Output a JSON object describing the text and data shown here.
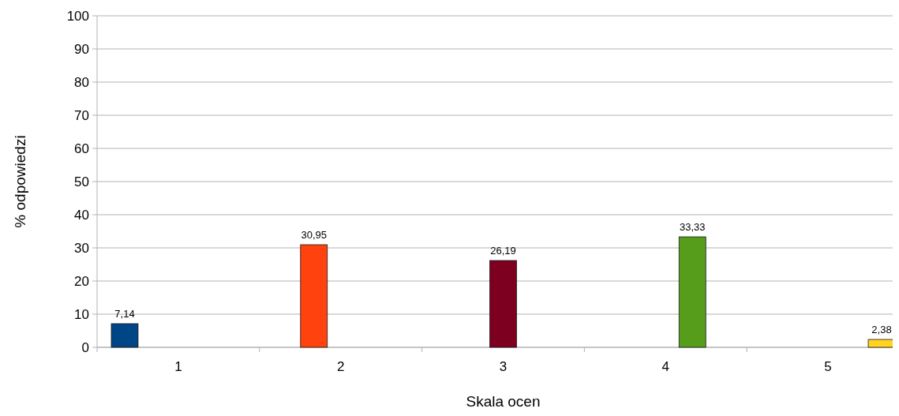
{
  "chart_data": {
    "type": "bar",
    "xlabel": "Skala ocen",
    "ylabel": "% odpowiedzi",
    "categories": [
      "1",
      "2",
      "3",
      "4",
      "5"
    ],
    "series": [
      {
        "color": "#004586",
        "values": [
          7.14,
          null,
          null,
          null,
          null
        ],
        "value_labels": [
          "7,14",
          null,
          null,
          null,
          null
        ]
      },
      {
        "color": "#ff420e",
        "values": [
          null,
          30.95,
          null,
          null,
          null
        ],
        "value_labels": [
          null,
          "30,95",
          null,
          null,
          null
        ]
      },
      {
        "color": "#7e0021",
        "values": [
          null,
          null,
          26.19,
          null,
          null
        ],
        "value_labels": [
          null,
          null,
          "26,19",
          null,
          null
        ]
      },
      {
        "color": "#579d1c",
        "values": [
          null,
          null,
          null,
          33.33,
          null
        ],
        "value_labels": [
          null,
          null,
          null,
          "33,33",
          null
        ]
      },
      {
        "color": "#ffd320",
        "values": [
          null,
          null,
          null,
          null,
          2.38
        ],
        "value_labels": [
          null,
          null,
          null,
          null,
          "2,38"
        ]
      }
    ],
    "ylim": [
      0,
      100
    ],
    "yticks": [
      0,
      10,
      20,
      30,
      40,
      50,
      60,
      70,
      80,
      90,
      100
    ],
    "grid": "y"
  }
}
